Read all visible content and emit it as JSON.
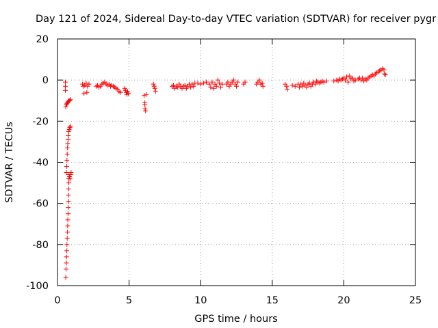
{
  "chart_data": {
    "type": "scatter",
    "title": "Day 121 of 2024, Sidereal Day-to-day VTEC variation (SDTVAR) for receiver pygr",
    "xlabel": "GPS time / hours",
    "ylabel": "SDTVAR / TECUs",
    "xlim": [
      0,
      25
    ],
    "ylim": [
      -100,
      20
    ],
    "x_ticks": [
      0,
      5,
      10,
      15,
      20,
      25
    ],
    "y_ticks": [
      -100,
      -80,
      -60,
      -40,
      -20,
      0,
      20
    ],
    "grid": true,
    "marker": "+",
    "series": [
      {
        "name": "SDTVAR",
        "color": "#ff0000",
        "points": [
          [
            0.55,
            -1
          ],
          [
            0.55,
            -3
          ],
          [
            0.55,
            -5
          ],
          [
            0.58,
            -96
          ],
          [
            0.6,
            -92
          ],
          [
            0.62,
            -89
          ],
          [
            0.63,
            -86
          ],
          [
            0.65,
            -83
          ],
          [
            0.66,
            -80
          ],
          [
            0.68,
            -77
          ],
          [
            0.7,
            -74
          ],
          [
            0.71,
            -71
          ],
          [
            0.72,
            -68
          ],
          [
            0.74,
            -65
          ],
          [
            0.75,
            -62
          ],
          [
            0.76,
            -59
          ],
          [
            0.77,
            -56
          ],
          [
            0.78,
            -53
          ],
          [
            0.79,
            -50
          ],
          [
            0.8,
            -48
          ],
          [
            0.81,
            -46
          ],
          [
            0.62,
            -45
          ],
          [
            0.64,
            -42
          ],
          [
            0.66,
            -39
          ],
          [
            0.68,
            -36
          ],
          [
            0.7,
            -33
          ],
          [
            0.72,
            -31
          ],
          [
            0.74,
            -29
          ],
          [
            0.76,
            -27
          ],
          [
            0.78,
            -25
          ],
          [
            0.82,
            -24
          ],
          [
            0.86,
            -23
          ],
          [
            0.9,
            -22.5
          ],
          [
            0.84,
            -47
          ],
          [
            0.88,
            -48
          ],
          [
            0.92,
            -46
          ],
          [
            0.95,
            -45
          ],
          [
            0.58,
            -13
          ],
          [
            0.62,
            -12
          ],
          [
            0.66,
            -11.5
          ],
          [
            0.7,
            -11
          ],
          [
            0.75,
            -10.5
          ],
          [
            0.8,
            -10
          ],
          [
            0.85,
            -10
          ],
          [
            0.9,
            -9.5
          ],
          [
            1.75,
            -2
          ],
          [
            1.8,
            -3
          ],
          [
            1.85,
            -6.5
          ],
          [
            1.9,
            -2.5
          ],
          [
            2.0,
            -1.5
          ],
          [
            2.05,
            -6
          ],
          [
            2.1,
            -3
          ],
          [
            2.2,
            -2
          ],
          [
            2.7,
            -3
          ],
          [
            2.8,
            -2.5
          ],
          [
            2.9,
            -3.5
          ],
          [
            3.0,
            -3
          ],
          [
            3.1,
            -2
          ],
          [
            3.2,
            -1.5
          ],
          [
            3.3,
            -1
          ],
          [
            3.4,
            -2
          ],
          [
            3.5,
            -2.5
          ],
          [
            3.6,
            -2
          ],
          [
            3.7,
            -3
          ],
          [
            3.8,
            -2.5
          ],
          [
            3.9,
            -3
          ],
          [
            4.0,
            -3.5
          ],
          [
            4.1,
            -4
          ],
          [
            4.2,
            -4.5
          ],
          [
            4.3,
            -5.5
          ],
          [
            4.4,
            -6
          ],
          [
            4.7,
            -4
          ],
          [
            4.75,
            -5
          ],
          [
            4.8,
            -6
          ],
          [
            4.85,
            -7
          ],
          [
            4.9,
            -5.5
          ],
          [
            4.95,
            -6.5
          ],
          [
            6.05,
            -7.5
          ],
          [
            6.1,
            -11
          ],
          [
            6.1,
            -12
          ],
          [
            6.12,
            -14
          ],
          [
            6.15,
            -15
          ],
          [
            6.2,
            -7
          ],
          [
            6.7,
            -2
          ],
          [
            6.75,
            -3
          ],
          [
            6.8,
            -4
          ],
          [
            6.85,
            -5.5
          ],
          [
            8.0,
            -3
          ],
          [
            8.1,
            -2.5
          ],
          [
            8.2,
            -4
          ],
          [
            8.3,
            -3
          ],
          [
            8.4,
            -3.5
          ],
          [
            8.5,
            -2
          ],
          [
            8.6,
            -3
          ],
          [
            8.7,
            -4
          ],
          [
            8.8,
            -3
          ],
          [
            8.9,
            -2.5
          ],
          [
            9.0,
            -4
          ],
          [
            9.1,
            -3
          ],
          [
            9.2,
            -2
          ],
          [
            9.3,
            -3.5
          ],
          [
            9.4,
            -2
          ],
          [
            9.5,
            -3
          ],
          [
            9.6,
            -1.5
          ],
          [
            9.8,
            -1.5
          ],
          [
            10.0,
            -2
          ],
          [
            10.2,
            -1.5
          ],
          [
            10.4,
            -1
          ],
          [
            10.6,
            -2
          ],
          [
            10.7,
            -3.5
          ],
          [
            10.8,
            -1
          ],
          [
            10.9,
            -4
          ],
          [
            11.0,
            -2
          ],
          [
            11.1,
            -3
          ],
          [
            11.2,
            0
          ],
          [
            11.3,
            -1.5
          ],
          [
            11.4,
            -3.5
          ],
          [
            11.5,
            -2
          ],
          [
            11.8,
            -2
          ],
          [
            11.9,
            -1
          ],
          [
            12.0,
            -3
          ],
          [
            12.1,
            -2
          ],
          [
            12.2,
            -1
          ],
          [
            12.3,
            0
          ],
          [
            12.4,
            -2
          ],
          [
            12.5,
            -3
          ],
          [
            12.6,
            -1
          ],
          [
            13.0,
            -2
          ],
          [
            13.1,
            -1
          ],
          [
            13.9,
            -2
          ],
          [
            14.0,
            -1
          ],
          [
            14.1,
            0
          ],
          [
            14.2,
            -2
          ],
          [
            14.3,
            -1.5
          ],
          [
            14.35,
            -3
          ],
          [
            15.9,
            -2
          ],
          [
            16.0,
            -3
          ],
          [
            16.05,
            -4.5
          ],
          [
            16.4,
            -2.5
          ],
          [
            16.6,
            -3
          ],
          [
            16.8,
            -2
          ],
          [
            16.9,
            -3.5
          ],
          [
            17.0,
            -2
          ],
          [
            17.1,
            -3
          ],
          [
            17.2,
            -1.5
          ],
          [
            17.3,
            -2.5
          ],
          [
            17.4,
            -3.5
          ],
          [
            17.5,
            -2
          ],
          [
            17.6,
            -1.5
          ],
          [
            17.7,
            -3
          ],
          [
            17.8,
            -2
          ],
          [
            17.9,
            -1
          ],
          [
            18.0,
            -2
          ],
          [
            18.1,
            -0.5
          ],
          [
            18.2,
            -1
          ],
          [
            18.3,
            -1.5
          ],
          [
            18.4,
            -1
          ],
          [
            18.5,
            -0.5
          ],
          [
            18.6,
            -1
          ],
          [
            18.8,
            -0.5
          ],
          [
            19.3,
            -0.5
          ],
          [
            19.5,
            0
          ],
          [
            19.6,
            -0.5
          ],
          [
            19.7,
            0.5
          ],
          [
            19.8,
            0
          ],
          [
            19.9,
            0.5
          ],
          [
            20.0,
            1
          ],
          [
            20.1,
            0
          ],
          [
            20.2,
            1.5
          ],
          [
            20.3,
            -1
          ],
          [
            20.4,
            2
          ],
          [
            20.5,
            0.5
          ],
          [
            20.6,
            1
          ],
          [
            20.7,
            -0.5
          ],
          [
            20.8,
            0
          ],
          [
            21.0,
            0.5
          ],
          [
            21.1,
            1
          ],
          [
            21.2,
            0
          ],
          [
            21.3,
            1
          ],
          [
            21.4,
            -0.5
          ],
          [
            21.5,
            0.5
          ],
          [
            21.6,
            0
          ],
          [
            21.7,
            1
          ],
          [
            21.8,
            1.5
          ],
          [
            21.9,
            2
          ],
          [
            22.0,
            2.5
          ],
          [
            22.1,
            2
          ],
          [
            22.2,
            3
          ],
          [
            22.3,
            3.5
          ],
          [
            22.4,
            4
          ],
          [
            22.5,
            4.5
          ],
          [
            22.6,
            5
          ],
          [
            22.7,
            5.5
          ],
          [
            22.8,
            5
          ],
          [
            22.85,
            3
          ],
          [
            22.9,
            2.5
          ]
        ]
      }
    ]
  }
}
